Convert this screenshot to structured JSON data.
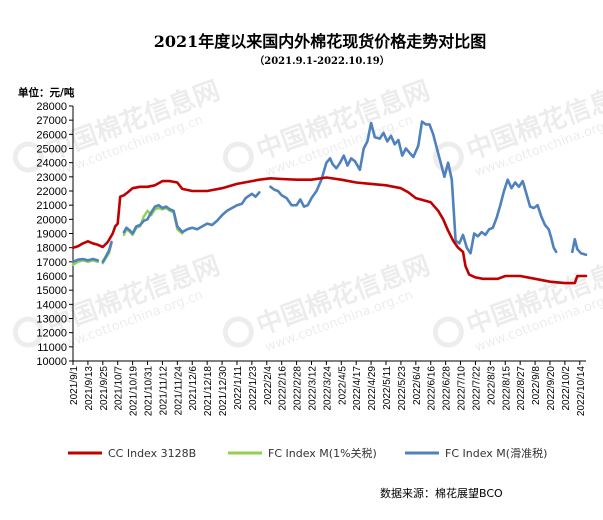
{
  "chart_data": {
    "type": "line",
    "title": "2021年度以来国内外棉花现货价格走势对比图",
    "subtitle": "（2021.9.1-2022.10.19）",
    "ylabel": "单位：元/吨",
    "ylim": [
      10000,
      28000
    ],
    "yticks": [
      10000,
      11000,
      12000,
      13000,
      14000,
      15000,
      16000,
      17000,
      18000,
      19000,
      20000,
      21000,
      22000,
      23000,
      24000,
      25000,
      26000,
      27000,
      28000
    ],
    "x_range": [
      "2021/9/1",
      "2022/10/19"
    ],
    "xticks": [
      "2021/9/1",
      "2021/9/13",
      "2021/9/25",
      "2021/10/7",
      "2021/10/19",
      "2021/10/31",
      "2021/11/12",
      "2021/11/24",
      "2021/12/6",
      "2021/12/18",
      "2021/12/30",
      "2022/1/11",
      "2022/1/23",
      "2022/2/4",
      "2022/2/16",
      "2022/2/28",
      "2022/3/12",
      "2022/3/24",
      "2022/4/5",
      "2022/4/17",
      "2022/4/29",
      "2022/5/11",
      "2022/5/23",
      "2022/6/4",
      "2022/6/16",
      "2022/6/28",
      "2022/7/10",
      "2022/7/22",
      "2022/8/3",
      "2022/8/15",
      "2022/8/27",
      "2022/9/8",
      "2022/9/20",
      "2022/10/2",
      "2022/10/14"
    ],
    "grid": false,
    "legend_position": "bottom",
    "source": "数据来源：棉花展望BCO",
    "watermark": [
      "中国棉花信息网",
      "www.cottonchina.org.cn"
    ],
    "series": [
      {
        "name": "CC Index 3128B",
        "color": "#c00000",
        "points": [
          [
            "2021/9/1",
            18000
          ],
          [
            "2021/9/5",
            18100
          ],
          [
            "2021/9/9",
            18300
          ],
          [
            "2021/9/13",
            18450
          ],
          [
            "2021/9/17",
            18300
          ],
          [
            "2021/9/21",
            18200
          ],
          [
            "2021/9/25",
            18050
          ],
          [
            "2021/9/29",
            18400
          ],
          [
            "2021/10/3",
            19000
          ],
          [
            "2021/10/5",
            19500
          ],
          [
            "2021/10/7",
            19700
          ],
          [
            "2021/10/9",
            21600
          ],
          [
            "2021/10/12",
            21700
          ],
          [
            "2021/10/15",
            21900
          ],
          [
            "2021/10/19",
            22200
          ],
          [
            "2021/10/25",
            22300
          ],
          [
            "2021/10/31",
            22300
          ],
          [
            "2021/11/6",
            22400
          ],
          [
            "2021/11/12",
            22700
          ],
          [
            "2021/11/18",
            22700
          ],
          [
            "2021/11/24",
            22600
          ],
          [
            "2021/11/28",
            22150
          ],
          [
            "2021/12/6",
            22000
          ],
          [
            "2021/12/18",
            22000
          ],
          [
            "2021/12/30",
            22200
          ],
          [
            "2022/1/11",
            22500
          ],
          [
            "2022/1/23",
            22700
          ],
          [
            "2022/1/29",
            22800
          ],
          [
            "2022/2/7",
            22900
          ],
          [
            "2022/2/16",
            22850
          ],
          [
            "2022/2/28",
            22800
          ],
          [
            "2022/3/12",
            22800
          ],
          [
            "2022/3/24",
            22950
          ],
          [
            "2022/4/5",
            22800
          ],
          [
            "2022/4/17",
            22600
          ],
          [
            "2022/4/29",
            22500
          ],
          [
            "2022/5/11",
            22400
          ],
          [
            "2022/5/23",
            22200
          ],
          [
            "2022/5/29",
            21900
          ],
          [
            "2022/6/4",
            21500
          ],
          [
            "2022/6/16",
            21200
          ],
          [
            "2022/6/22",
            20600
          ],
          [
            "2022/6/26",
            20000
          ],
          [
            "2022/6/30",
            19200
          ],
          [
            "2022/7/4",
            18500
          ],
          [
            "2022/7/8",
            18000
          ],
          [
            "2022/7/12",
            17700
          ],
          [
            "2022/7/14",
            16700
          ],
          [
            "2022/7/17",
            16100
          ],
          [
            "2022/7/22",
            15900
          ],
          [
            "2022/7/28",
            15800
          ],
          [
            "2022/8/3",
            15800
          ],
          [
            "2022/8/9",
            15800
          ],
          [
            "2022/8/15",
            16000
          ],
          [
            "2022/8/27",
            16000
          ],
          [
            "2022/9/8",
            15800
          ],
          [
            "2022/9/20",
            15600
          ],
          [
            "2022/10/2",
            15500
          ],
          [
            "2022/10/10",
            15500
          ],
          [
            "2022/10/12",
            16000
          ],
          [
            "2022/10/19",
            16000
          ]
        ]
      },
      {
        "name": "FC Index M(1%关税)",
        "color": "#92d050",
        "segments": [
          [
            [
              "2021/9/1",
              16800
            ],
            [
              "2021/9/5",
              17000
            ],
            [
              "2021/9/9",
              17100
            ],
            [
              "2021/9/13",
              17000
            ],
            [
              "2021/9/17",
              17100
            ],
            [
              "2021/9/21",
              17000
            ]
          ],
          [
            [
              "2021/9/25",
              16900
            ],
            [
              "2021/9/27",
              17200
            ],
            [
              "2021/9/30",
              17600
            ],
            [
              "2021/10/2",
              18300
            ]
          ],
          [
            [
              "2021/10/12",
              18900
            ],
            [
              "2021/10/14",
              19300
            ],
            [
              "2021/10/17",
              19100
            ],
            [
              "2021/10/19",
              18900
            ],
            [
              "2021/10/22",
              19400
            ],
            [
              "2021/10/25",
              19500
            ],
            [
              "2021/10/28",
              20200
            ],
            [
              "2021/10/31",
              20600
            ],
            [
              "2021/11/3",
              20300
            ],
            [
              "2021/11/6",
              20700
            ],
            [
              "2021/11/9",
              20800
            ],
            [
              "2021/11/12",
              20700
            ],
            [
              "2021/11/15",
              20800
            ],
            [
              "2021/11/18",
              20600
            ],
            [
              "2021/11/21",
              20500
            ],
            [
              "2021/11/24",
              19300
            ],
            [
              "2021/11/28",
              19000
            ]
          ]
        ]
      },
      {
        "name": "FC Index M(滑准税)",
        "color": "#4f81bd",
        "segments": [
          [
            [
              "2021/9/1",
              17000
            ],
            [
              "2021/9/5",
              17150
            ],
            [
              "2021/9/9",
              17200
            ],
            [
              "2021/9/13",
              17100
            ],
            [
              "2021/9/17",
              17200
            ],
            [
              "2021/9/21",
              17100
            ]
          ],
          [
            [
              "2021/9/25",
              17000
            ],
            [
              "2021/9/27",
              17300
            ],
            [
              "2021/9/30",
              17800
            ],
            [
              "2021/10/2",
              18400
            ]
          ],
          [
            [
              "2021/10/12",
              19100
            ],
            [
              "2021/10/14",
              19400
            ],
            [
              "2021/10/17",
              19200
            ],
            [
              "2021/10/19",
              19000
            ],
            [
              "2021/10/22",
              19500
            ],
            [
              "2021/10/25",
              19600
            ],
            [
              "2021/10/28",
              19900
            ],
            [
              "2021/10/31",
              20000
            ],
            [
              "2021/11/3",
              20500
            ],
            [
              "2021/11/6",
              20900
            ],
            [
              "2021/11/9",
              21000
            ],
            [
              "2021/11/12",
              20800
            ],
            [
              "2021/11/15",
              20900
            ],
            [
              "2021/11/18",
              20700
            ],
            [
              "2021/11/21",
              20600
            ],
            [
              "2021/11/24",
              19500
            ],
            [
              "2021/11/28",
              19100
            ],
            [
              "2021/12/2",
              19300
            ],
            [
              "2021/12/6",
              19400
            ],
            [
              "2021/12/10",
              19300
            ],
            [
              "2021/12/14",
              19500
            ],
            [
              "2021/12/18",
              19700
            ],
            [
              "2021/12/22",
              19600
            ],
            [
              "2021/12/26",
              19900
            ],
            [
              "2021/12/30",
              20300
            ],
            [
              "2022/1/3",
              20600
            ],
            [
              "2022/1/7",
              20800
            ],
            [
              "2022/1/11",
              21000
            ],
            [
              "2022/1/15",
              21100
            ],
            [
              "2022/1/18",
              21500
            ],
            [
              "2022/1/23",
              21800
            ],
            [
              "2022/1/26",
              21600
            ],
            [
              "2022/1/29",
              21900
            ]
          ],
          [
            [
              "2022/2/7",
              22300
            ],
            [
              "2022/2/10",
              22100
            ],
            [
              "2022/2/13",
              22000
            ],
            [
              "2022/2/16",
              21700
            ],
            [
              "2022/2/20",
              21500
            ],
            [
              "2022/2/24",
              21000
            ],
            [
              "2022/2/28",
              21000
            ],
            [
              "2022/3/3",
              21400
            ],
            [
              "2022/3/6",
              20900
            ],
            [
              "2022/3/9",
              21000
            ],
            [
              "2022/3/12",
              21500
            ],
            [
              "2022/3/16",
              22000
            ],
            [
              "2022/3/20",
              22800
            ],
            [
              "2022/3/24",
              24000
            ],
            [
              "2022/3/27",
              24300
            ],
            [
              "2022/3/29",
              23900
            ],
            [
              "2022/4/1",
              23600
            ],
            [
              "2022/4/4",
              24000
            ],
            [
              "2022/4/7",
              24500
            ],
            [
              "2022/4/10",
              23800
            ],
            [
              "2022/4/13",
              24300
            ],
            [
              "2022/4/16",
              24100
            ],
            [
              "2022/4/20",
              23500
            ],
            [
              "2022/4/23",
              25000
            ],
            [
              "2022/4/26",
              25500
            ],
            [
              "2022/4/29",
              26800
            ],
            [
              "2022/5/2",
              25800
            ],
            [
              "2022/5/6",
              25700
            ],
            [
              "2022/5/9",
              26100
            ],
            [
              "2022/5/12",
              25500
            ],
            [
              "2022/5/15",
              25900
            ],
            [
              "2022/5/18",
              25300
            ],
            [
              "2022/5/21",
              25600
            ],
            [
              "2022/5/24",
              24500
            ],
            [
              "2022/5/27",
              25000
            ],
            [
              "2022/5/30",
              24700
            ],
            [
              "2022/6/2",
              24400
            ],
            [
              "2022/6/6",
              25200
            ],
            [
              "2022/6/9",
              26900
            ],
            [
              "2022/6/12",
              26700
            ],
            [
              "2022/6/15",
              26700
            ],
            [
              "2022/6/18",
              26000
            ],
            [
              "2022/6/21",
              25000
            ],
            [
              "2022/6/24",
              24000
            ],
            [
              "2022/6/27",
              23000
            ],
            [
              "2022/6/30",
              24000
            ],
            [
              "2022/7/3",
              22800
            ],
            [
              "2022/7/6",
              18500
            ],
            [
              "2022/7/9",
              18300
            ],
            [
              "2022/7/12",
              18900
            ],
            [
              "2022/7/15",
              18000
            ],
            [
              "2022/7/18",
              17600
            ],
            [
              "2022/7/21",
              19000
            ],
            [
              "2022/7/24",
              18800
            ],
            [
              "2022/7/27",
              19100
            ],
            [
              "2022/7/30",
              18900
            ],
            [
              "2022/8/2",
              19300
            ],
            [
              "2022/8/5",
              19400
            ],
            [
              "2022/8/8",
              20100
            ],
            [
              "2022/8/11",
              21000
            ],
            [
              "2022/8/14",
              22000
            ],
            [
              "2022/8/17",
              22800
            ],
            [
              "2022/8/20",
              22200
            ],
            [
              "2022/8/23",
              22600
            ],
            [
              "2022/8/26",
              22300
            ],
            [
              "2022/8/29",
              22700
            ],
            [
              "2022/9/1",
              21800
            ],
            [
              "2022/9/4",
              20900
            ],
            [
              "2022/9/7",
              20800
            ],
            [
              "2022/9/10",
              21000
            ],
            [
              "2022/9/13",
              20200
            ],
            [
              "2022/9/16",
              19600
            ],
            [
              "2022/9/19",
              19300
            ],
            [
              "2022/9/21",
              18700
            ],
            [
              "2022/9/23",
              18000
            ],
            [
              "2022/9/25",
              17700
            ]
          ],
          [
            [
              "2022/10/8",
              17700
            ],
            [
              "2022/10/10",
              18600
            ],
            [
              "2022/10/12",
              17900
            ],
            [
              "2022/10/15",
              17600
            ],
            [
              "2022/10/19",
              17500
            ]
          ]
        ]
      }
    ]
  }
}
